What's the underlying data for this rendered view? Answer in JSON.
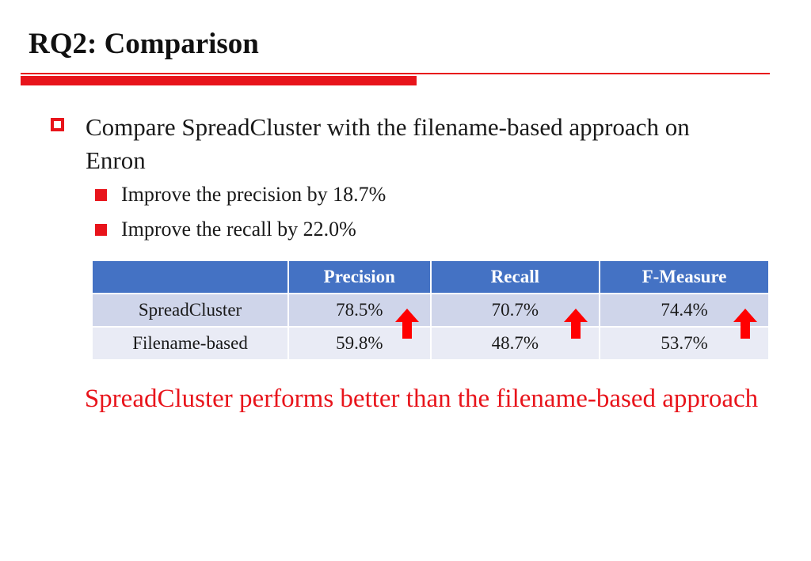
{
  "slide": {
    "title": "RQ2: Comparison"
  },
  "bullets": {
    "main": "Compare SpreadCluster with the filename-based approach on Enron",
    "sub": [
      "Improve the precision by 18.7%",
      "Improve the recall by 22.0%"
    ]
  },
  "table": {
    "headers": [
      "",
      "Precision",
      "Recall",
      "F-Measure"
    ],
    "rows": [
      {
        "label": "SpreadCluster",
        "values": [
          "78.5%",
          "70.7%",
          "74.4%"
        ],
        "improved": true
      },
      {
        "label": "Filename-based",
        "values": [
          "59.8%",
          "48.7%",
          "53.7%"
        ],
        "improved": false
      }
    ],
    "arrow_icon": "red-up-arrow-icon"
  },
  "conclusion": "SpreadCluster performs better than the filename-based approach",
  "colors": {
    "accent_red": "#e8141b",
    "header_blue": "#4472c4",
    "row_light": "#cfd5ea",
    "row_lighter": "#e9ebf5"
  }
}
